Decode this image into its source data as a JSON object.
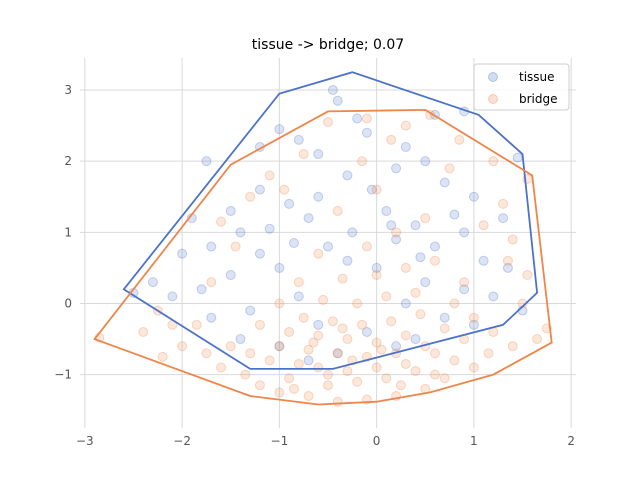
{
  "chart_data": {
    "type": "scatter",
    "title": "tissue -> bridge; 0.07",
    "xlabel": "",
    "ylabel": "",
    "xlim": [
      -3.05,
      2.05
    ],
    "ylim": [
      -1.75,
      3.45
    ],
    "xticks": [
      -3,
      -2,
      -1,
      0,
      1,
      2
    ],
    "yticks": [
      -1,
      0,
      1,
      2,
      3
    ],
    "grid": true,
    "legend_position": "top-right",
    "series": [
      {
        "name": "tissue",
        "color": "#4c72c9",
        "point_alpha": 0.2,
        "hull": [
          [
            -2.6,
            0.2
          ],
          [
            -1.0,
            2.95
          ],
          [
            -0.25,
            3.25
          ],
          [
            1.05,
            2.65
          ],
          [
            1.5,
            2.1
          ],
          [
            1.65,
            0.15
          ],
          [
            1.3,
            -0.3
          ],
          [
            -0.45,
            -0.92
          ],
          [
            -1.3,
            -0.92
          ]
        ],
        "points": [
          [
            -1.75,
            2.0
          ],
          [
            -1.2,
            2.2
          ],
          [
            -0.4,
            2.85
          ],
          [
            -0.45,
            3.0
          ],
          [
            -0.2,
            2.6
          ],
          [
            0.6,
            2.65
          ],
          [
            0.9,
            2.7
          ],
          [
            -0.1,
            2.4
          ],
          [
            0.3,
            2.2
          ],
          [
            -0.6,
            2.1
          ],
          [
            -1.0,
            2.45
          ],
          [
            -0.8,
            2.3
          ],
          [
            0.5,
            2.0
          ],
          [
            0.2,
            1.9
          ],
          [
            -0.3,
            1.8
          ],
          [
            -1.2,
            1.6
          ],
          [
            -0.9,
            1.4
          ],
          [
            0.7,
            1.7
          ],
          [
            1.0,
            1.5
          ],
          [
            1.3,
            1.2
          ],
          [
            -1.5,
            1.3
          ],
          [
            -1.9,
            1.2
          ],
          [
            -1.4,
            1.0
          ],
          [
            -0.7,
            1.2
          ],
          [
            0.1,
            1.3
          ],
          [
            0.4,
            1.1
          ],
          [
            0.9,
            1.0
          ],
          [
            -2.0,
            0.7
          ],
          [
            -1.7,
            0.8
          ],
          [
            -1.2,
            0.7
          ],
          [
            -0.5,
            0.8
          ],
          [
            0.2,
            0.9
          ],
          [
            0.6,
            0.8
          ],
          [
            1.1,
            0.6
          ],
          [
            1.35,
            0.5
          ],
          [
            -2.3,
            0.3
          ],
          [
            -2.1,
            0.1
          ],
          [
            -1.8,
            0.2
          ],
          [
            -1.5,
            0.4
          ],
          [
            -1.0,
            0.5
          ],
          [
            -0.3,
            0.6
          ],
          [
            0.0,
            0.5
          ],
          [
            0.5,
            0.3
          ],
          [
            0.9,
            0.2
          ],
          [
            1.2,
            0.1
          ],
          [
            1.5,
            -0.1
          ],
          [
            -1.7,
            -0.2
          ],
          [
            -1.3,
            -0.1
          ],
          [
            -0.8,
            0.1
          ],
          [
            0.3,
            0.0
          ],
          [
            0.7,
            -0.2
          ],
          [
            1.0,
            -0.3
          ],
          [
            -1.4,
            -0.5
          ],
          [
            -0.6,
            -0.3
          ],
          [
            -0.1,
            -0.4
          ],
          [
            0.4,
            -0.5
          ],
          [
            -1.0,
            -0.6
          ],
          [
            -0.4,
            -0.7
          ],
          [
            0.2,
            -0.6
          ],
          [
            -0.7,
            -0.8
          ],
          [
            -2.5,
            0.15
          ],
          [
            1.45,
            2.05
          ],
          [
            -0.05,
            1.6
          ],
          [
            -0.6,
            1.5
          ],
          [
            0.15,
            1.1
          ],
          [
            -1.1,
            1.05
          ],
          [
            0.8,
            1.25
          ],
          [
            -0.25,
            1.0
          ],
          [
            -0.85,
            0.85
          ],
          [
            0.45,
            0.65
          ]
        ]
      },
      {
        "name": "bridge",
        "color": "#ee854a",
        "point_alpha": 0.2,
        "hull": [
          [
            -2.9,
            -0.5
          ],
          [
            -1.5,
            1.95
          ],
          [
            -0.5,
            2.7
          ],
          [
            0.5,
            2.72
          ],
          [
            1.6,
            1.8
          ],
          [
            1.8,
            -0.55
          ],
          [
            1.2,
            -1.0
          ],
          [
            0.55,
            -1.25
          ],
          [
            0.0,
            -1.38
          ],
          [
            -0.6,
            -1.42
          ],
          [
            -1.3,
            -1.3
          ]
        ],
        "points": [
          [
            -2.85,
            -0.48
          ],
          [
            -2.4,
            -0.4
          ],
          [
            -2.2,
            -0.75
          ],
          [
            -2.0,
            -0.6
          ],
          [
            -2.25,
            -0.1
          ],
          [
            -1.85,
            -0.3
          ],
          [
            -1.6,
            -0.9
          ],
          [
            -1.5,
            -0.6
          ],
          [
            -1.7,
            0.3
          ],
          [
            -1.45,
            0.8
          ],
          [
            -1.6,
            1.15
          ],
          [
            -1.3,
            1.5
          ],
          [
            -1.1,
            1.8
          ],
          [
            -0.75,
            2.1
          ],
          [
            -0.5,
            2.55
          ],
          [
            -0.1,
            2.6
          ],
          [
            0.3,
            2.5
          ],
          [
            0.55,
            2.65
          ],
          [
            0.85,
            2.3
          ],
          [
            1.2,
            2.0
          ],
          [
            1.55,
            1.75
          ],
          [
            1.3,
            1.4
          ],
          [
            1.1,
            1.1
          ],
          [
            1.4,
            0.9
          ],
          [
            1.55,
            0.4
          ],
          [
            1.75,
            -0.35
          ],
          [
            1.65,
            -0.5
          ],
          [
            1.4,
            -0.6
          ],
          [
            1.15,
            -0.7
          ],
          [
            1.0,
            -0.9
          ],
          [
            0.7,
            -1.05
          ],
          [
            0.5,
            -1.2
          ],
          [
            0.2,
            -1.3
          ],
          [
            -0.1,
            -1.35
          ],
          [
            -0.4,
            -1.38
          ],
          [
            -0.7,
            -1.3
          ],
          [
            -1.0,
            -1.25
          ],
          [
            -1.2,
            -1.15
          ],
          [
            -1.35,
            -1.0
          ],
          [
            -0.9,
            -1.05
          ],
          [
            -0.5,
            -1.15
          ],
          [
            -0.2,
            -1.1
          ],
          [
            0.1,
            -1.05
          ],
          [
            0.4,
            -0.95
          ],
          [
            0.8,
            -0.8
          ],
          [
            -1.1,
            -0.8
          ],
          [
            -0.8,
            -0.85
          ],
          [
            -0.6,
            -0.9
          ],
          [
            -0.3,
            -0.95
          ],
          [
            0.0,
            -0.9
          ],
          [
            0.3,
            -0.85
          ],
          [
            0.6,
            -0.7
          ],
          [
            -1.0,
            -0.6
          ],
          [
            -0.7,
            -0.65
          ],
          [
            -0.4,
            -0.7
          ],
          [
            -0.1,
            -0.75
          ],
          [
            0.2,
            -0.7
          ],
          [
            0.5,
            -0.6
          ],
          [
            0.9,
            -0.5
          ],
          [
            -0.9,
            -0.4
          ],
          [
            -0.6,
            -0.45
          ],
          [
            -0.3,
            -0.5
          ],
          [
            0.0,
            -0.55
          ],
          [
            0.3,
            -0.45
          ],
          [
            0.7,
            -0.35
          ],
          [
            1.0,
            -0.2
          ],
          [
            -1.2,
            -0.3
          ],
          [
            -0.75,
            -0.2
          ],
          [
            -0.45,
            -0.25
          ],
          [
            -0.15,
            -0.3
          ],
          [
            0.15,
            -0.25
          ],
          [
            0.45,
            -0.15
          ],
          [
            0.8,
            0.0
          ],
          [
            -1.0,
            0.0
          ],
          [
            -0.55,
            0.05
          ],
          [
            -0.2,
            0.0
          ],
          [
            0.1,
            0.1
          ],
          [
            0.4,
            0.15
          ],
          [
            0.9,
            0.3
          ],
          [
            -0.8,
            0.3
          ],
          [
            -0.35,
            0.35
          ],
          [
            0.0,
            0.4
          ],
          [
            0.3,
            0.5
          ],
          [
            0.6,
            0.6
          ],
          [
            -0.6,
            0.7
          ],
          [
            -0.1,
            0.8
          ],
          [
            0.2,
            1.0
          ],
          [
            0.5,
            1.2
          ],
          [
            -0.4,
            1.3
          ],
          [
            0.0,
            1.6
          ],
          [
            -0.5,
            -1.0
          ],
          [
            -0.25,
            -0.8
          ],
          [
            0.05,
            -0.65
          ],
          [
            -0.65,
            -0.55
          ],
          [
            -0.35,
            -0.35
          ],
          [
            0.25,
            -1.15
          ],
          [
            -0.85,
            -1.2
          ],
          [
            0.6,
            -1.0
          ],
          [
            1.2,
            -0.4
          ],
          [
            -1.3,
            -0.7
          ],
          [
            -1.75,
            -0.7
          ],
          [
            -2.1,
            -0.3
          ],
          [
            1.5,
            0.0
          ],
          [
            1.35,
            0.6
          ],
          [
            -0.15,
            2.0
          ],
          [
            0.15,
            2.3
          ],
          [
            -0.95,
            1.6
          ],
          [
            0.75,
            1.9
          ]
        ]
      }
    ]
  }
}
